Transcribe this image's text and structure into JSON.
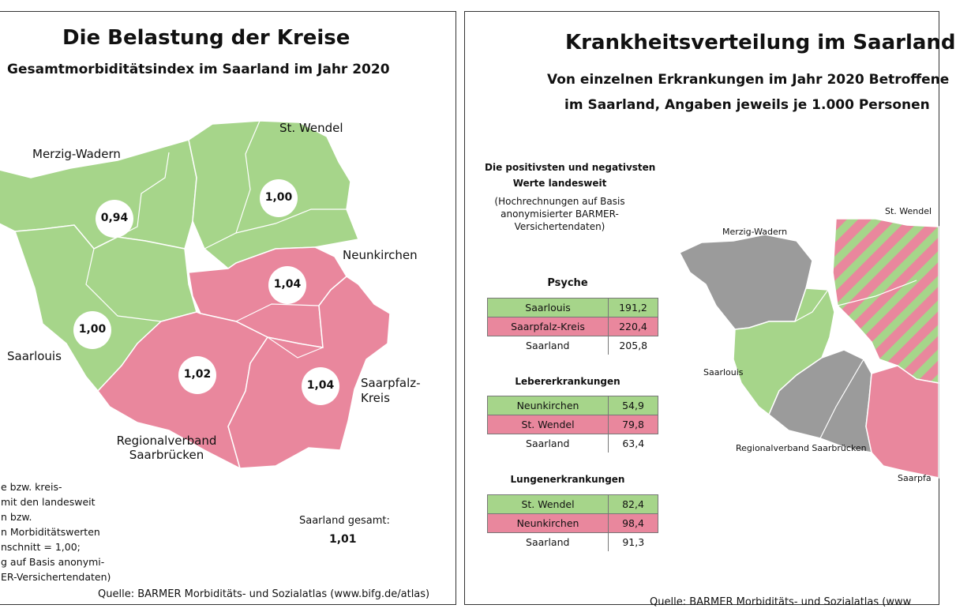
{
  "left": {
    "title": "Die Belastung der Kreise",
    "subtitle": "Gesamtmorbiditätsindex im Saarland im Jahr 2020",
    "regions": {
      "merzig": {
        "name": "Merzig-Wadern",
        "value": "0,94"
      },
      "wendel": {
        "name": "St. Wendel",
        "value": "1,00"
      },
      "neunkirchen": {
        "name": "Neunkirchen",
        "value": "1,04"
      },
      "saarlouis": {
        "name": "Saarlouis",
        "value": "1,00"
      },
      "saarbruecken": {
        "name_line1": "Regionalverband",
        "name_line2": "Saarbrücken",
        "value": "1,02"
      },
      "saarpfalz": {
        "name_line1": "Saarpfalz-",
        "name_line2": "Kreis",
        "value": "1,04"
      }
    },
    "note_lines": [
      "e bzw. kreis-",
      "mit den landesweit",
      "n bzw.",
      "n Morbiditätswerten",
      "nschnitt = 1,00;",
      "g auf Basis anonymi-",
      "ER-Versichertendaten)"
    ],
    "total_label": "Saarland gesamt:",
    "total_value": "1,01",
    "source": "Quelle: BARMER Morbiditäts- und Sozialatlas (www.bifg.de/atlas)",
    "colors": {
      "low": "#a6d58a",
      "high": "#e9879d"
    }
  },
  "right": {
    "title": "Krankheitsverteilung im Saarland",
    "subtitle_line1": "Von einzelnen Erkrankungen im Jahr 2020 Betroffene",
    "subtitle_line2": "im Saarland, Angaben jeweils je 1.000 Personen",
    "info_line1": "Die positivsten und negativsten",
    "info_line2": "Werte landesweit",
    "info_line3": "(Hochrechnungen auf Basis",
    "info_line4": "anonymisierter BARMER-",
    "info_line5": "Versichertendaten)",
    "tables": [
      {
        "title": "Psyche",
        "rows": [
          {
            "name": "Saarlouis",
            "value": "191,2"
          },
          {
            "name": "Saarpfalz-Kreis",
            "value": "220,4"
          },
          {
            "name": "Saarland",
            "value": "205,8"
          }
        ]
      },
      {
        "title": "Lebererkrankungen",
        "rows": [
          {
            "name": "Neunkirchen",
            "value": "54,9"
          },
          {
            "name": "St. Wendel",
            "value": "79,8"
          },
          {
            "name": "Saarland",
            "value": "63,4"
          }
        ]
      },
      {
        "title": "Lungenerkrankungen",
        "rows": [
          {
            "name": "St. Wendel",
            "value": "82,4"
          },
          {
            "name": "Neunkirchen",
            "value": "98,4"
          },
          {
            "name": "Saarland",
            "value": "91,3"
          }
        ]
      }
    ],
    "map_labels": {
      "wendel": "St. Wendel",
      "merzig": "Merzig-Wadern",
      "saarlouis": "Saarlouis",
      "saarbruecken": "Regionalverband Saarbrücken",
      "saarpfalz": "Saarpfa"
    },
    "source": "Quelle: BARMER Morbiditäts- und Sozialatlas (www",
    "colors": {
      "good": "#a6d58a",
      "bad": "#e9879d",
      "neutral": "#9b9b9b"
    }
  }
}
